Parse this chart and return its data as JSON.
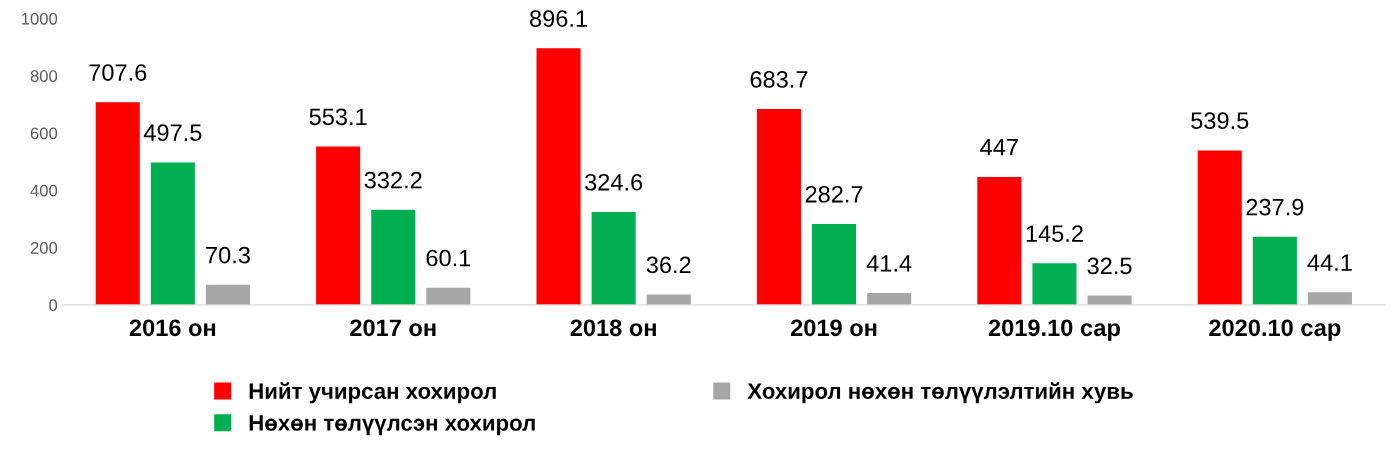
{
  "chart_data": {
    "type": "bar",
    "categories": [
      "2016 он",
      "2017 он",
      "2018 он",
      "2019 он",
      "2019.10 сар",
      "2020.10 сар"
    ],
    "series": [
      {
        "name": "Нийт учирсан хохирол",
        "color": "#ff0000",
        "values": [
          707.6,
          553.1,
          896.1,
          683.7,
          447,
          539.5
        ]
      },
      {
        "name": "Нөхөн төлүүлсэн хохирол",
        "color": "#00b050",
        "values": [
          497.5,
          332.2,
          324.6,
          282.7,
          145.2,
          237.9
        ]
      },
      {
        "name": "Хохирол нөхөн төлүүлэлтийн хувь",
        "color": "#a6a6a6",
        "values": [
          70.3,
          60.1,
          36.2,
          41.4,
          32.5,
          44.1
        ]
      }
    ],
    "ylim": [
      0,
      1000
    ],
    "yticks": [
      0,
      200,
      400,
      600,
      800,
      1000
    ],
    "data_labels": true,
    "grid": false,
    "legend": "bottom"
  }
}
